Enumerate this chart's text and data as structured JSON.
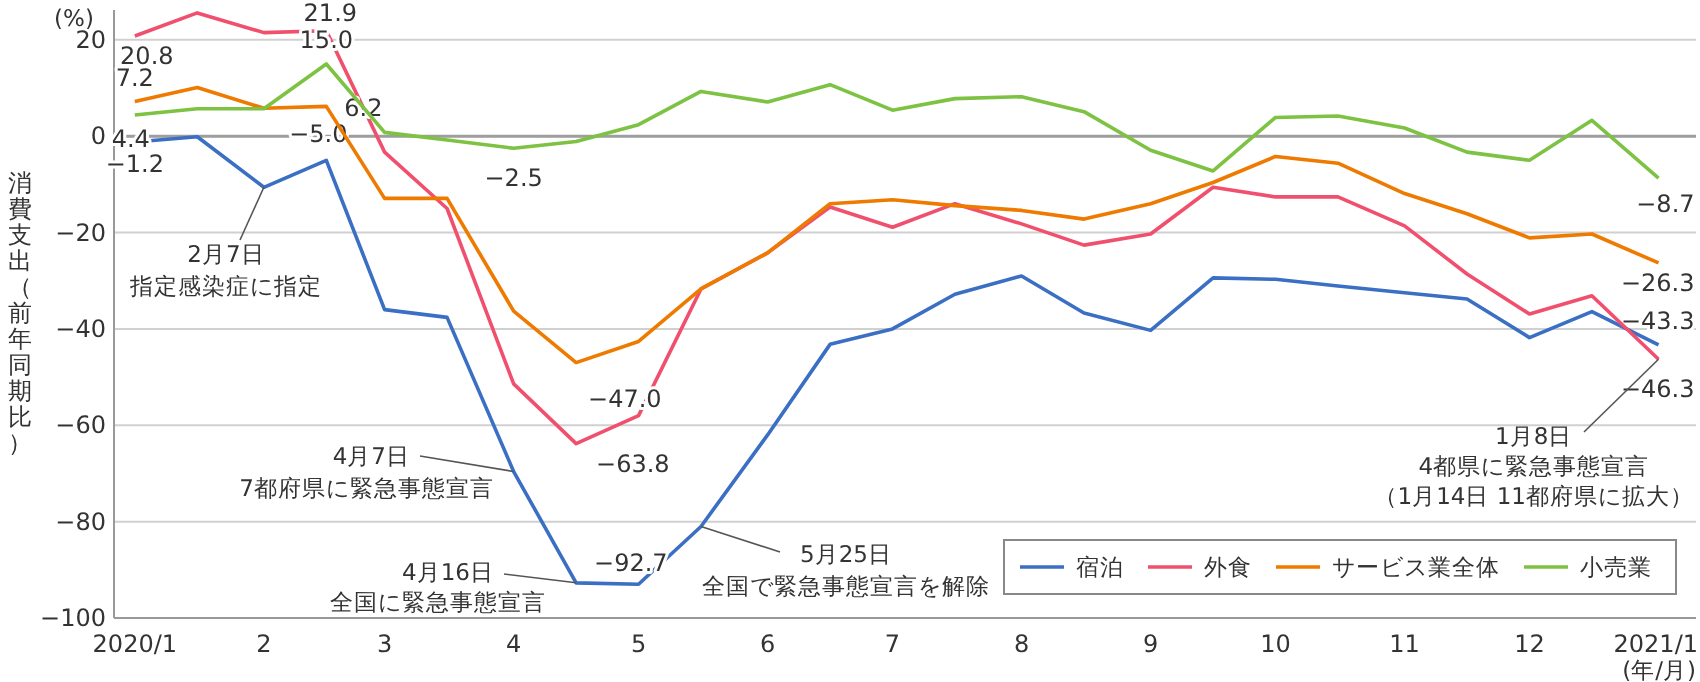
{
  "chart_data": {
    "type": "line",
    "ylabel": "消費支出（前年同期比）",
    "x": [
      "2020-01",
      "2020-01-16",
      "2020-02",
      "2020-02-16",
      "2020-03",
      "2020-03-16",
      "2020-04",
      "2020-04-16",
      "2020-05",
      "2020-05-16",
      "2020-06",
      "2020-06-16",
      "2020-07",
      "2020-07-16",
      "2020-08",
      "2020-08-16",
      "2020-09",
      "2020-09-16",
      "2020-10",
      "2020-10-16",
      "2020-11",
      "2020-11-16",
      "2020-12",
      "2020-12-16",
      "2021-01"
    ],
    "xlim": [
      "2019-12-27",
      "2021-01-10"
    ],
    "xticks": [
      {
        "value": "2020-01",
        "label": "2020/1"
      },
      {
        "value": "2020-02",
        "label": "2"
      },
      {
        "value": "2020-03",
        "label": "3"
      },
      {
        "value": "2020-04",
        "label": "4"
      },
      {
        "value": "2020-05",
        "label": "5"
      },
      {
        "value": "2020-06",
        "label": "6"
      },
      {
        "value": "2020-07",
        "label": "7"
      },
      {
        "value": "2020-08",
        "label": "8"
      },
      {
        "value": "2020-09",
        "label": "9"
      },
      {
        "value": "2020-10",
        "label": "10"
      },
      {
        "value": "2020-11",
        "label": "11"
      },
      {
        "value": "2020-12",
        "label": "12"
      },
      {
        "value": "2021-01",
        "label": "2021/1"
      }
    ],
    "ylim": [
      -100,
      26.2
    ],
    "yticks": [
      {
        "value": -100,
        "label": "−100"
      },
      {
        "value": -80,
        "label": "−80"
      },
      {
        "value": -60,
        "label": "−60"
      },
      {
        "value": -40,
        "label": "−40"
      },
      {
        "value": -20,
        "label": "−20"
      },
      0,
      20
    ],
    "grid": "y",
    "legend": "bottom right",
    "line_style": "solid",
    "ref_lines": [
      {
        "axis": "y",
        "value": 0,
        "color": "#9e9e9e"
      }
    ],
    "series": [
      {
        "name": "宿泊",
        "color": "#3a6fc4",
        "values": [
          -1.2,
          -0.1,
          -10.6,
          -5.0,
          -36,
          -37.6,
          -69.6,
          -92.7,
          -93,
          -81,
          -62,
          -43.2,
          -40,
          -32.8,
          -29,
          -36.7,
          -40.3,
          -29.4,
          -29.7,
          -31.1,
          -32.5,
          -33.8,
          -41.8,
          -36.4,
          -43.3
        ],
        "value_labels": [
          "−1.2",
          null,
          null,
          "−5.0",
          null,
          null,
          null,
          "−92.7",
          null,
          null,
          null,
          null,
          null,
          null,
          null,
          null,
          null,
          null,
          null,
          null,
          null,
          null,
          null,
          null,
          "−43.3"
        ]
      },
      {
        "name": "外食",
        "color": "#f0506e",
        "values": [
          20.8,
          25.6,
          21.5,
          21.9,
          -3.3,
          -15,
          -51.4,
          -63.8,
          -58,
          -31.7,
          -24.2,
          -14.7,
          -18.9,
          -14,
          -18.2,
          -22.6,
          -20.3,
          -10.6,
          -12.6,
          -12.6,
          -18.6,
          -28.6,
          -36.9,
          -33.1,
          -46.3
        ],
        "value_labels": [
          "20.8",
          null,
          null,
          "21.9",
          null,
          null,
          null,
          "−63.8",
          null,
          null,
          null,
          null,
          null,
          null,
          null,
          null,
          null,
          null,
          null,
          null,
          null,
          null,
          null,
          null,
          "−46.3"
        ]
      },
      {
        "name": "サービス業全体",
        "color": "#ee7a00",
        "values": [
          7.2,
          10.1,
          5.8,
          6.2,
          -12.9,
          -12.9,
          -36.3,
          -47.0,
          -42.6,
          -31.7,
          -24.2,
          -14,
          -13.2,
          -14.4,
          -15.4,
          -17.2,
          -14,
          -9.6,
          -4.2,
          -5.6,
          -11.9,
          -16.1,
          -21.1,
          -20.3,
          -26.3
        ],
        "value_labels": [
          "7.2",
          null,
          null,
          "6.2",
          null,
          null,
          null,
          "−47.0",
          null,
          null,
          null,
          null,
          null,
          null,
          null,
          null,
          null,
          null,
          null,
          null,
          null,
          null,
          null,
          null,
          "−26.3"
        ]
      },
      {
        "name": "小売業",
        "color": "#7dc242",
        "values": [
          4.4,
          5.7,
          5.7,
          15.0,
          0.8,
          -0.8,
          -2.5,
          -1.1,
          2.4,
          9.3,
          7.1,
          10.7,
          5.4,
          7.8,
          8.2,
          5.1,
          -2.9,
          -7.2,
          3.9,
          4.2,
          1.7,
          -3.3,
          -5,
          3.3,
          -8.7
        ],
        "value_labels": [
          "4.4",
          null,
          null,
          "15.0",
          null,
          null,
          "−2.5",
          null,
          null,
          null,
          null,
          null,
          null,
          null,
          null,
          null,
          null,
          null,
          null,
          null,
          null,
          null,
          null,
          null,
          "−8.7"
        ]
      }
    ],
    "annotations": [
      "(%)",
      "(年/月)",
      {
        "text": "2月7日",
        "x": "2020-02",
        "y": -10.6
      },
      "指定感染症に指定",
      {
        "text": "4月7日",
        "x": "2020-04",
        "y": -69.6
      },
      "7都府県に緊急事態宣言",
      {
        "text": "4月16日",
        "x": "2020-04-16",
        "y": -92.7
      },
      "全国に緊急事態宣言",
      {
        "text": "5月25日",
        "x": "2020-05-16",
        "y": -81
      },
      "全国で緊急事態宣言を解除",
      {
        "text": "1月8日",
        "x": "2021-01",
        "y": -46.3
      },
      "4都県に緊急事態宣言",
      "（1月14日 11都府県に拡大）"
    ]
  }
}
